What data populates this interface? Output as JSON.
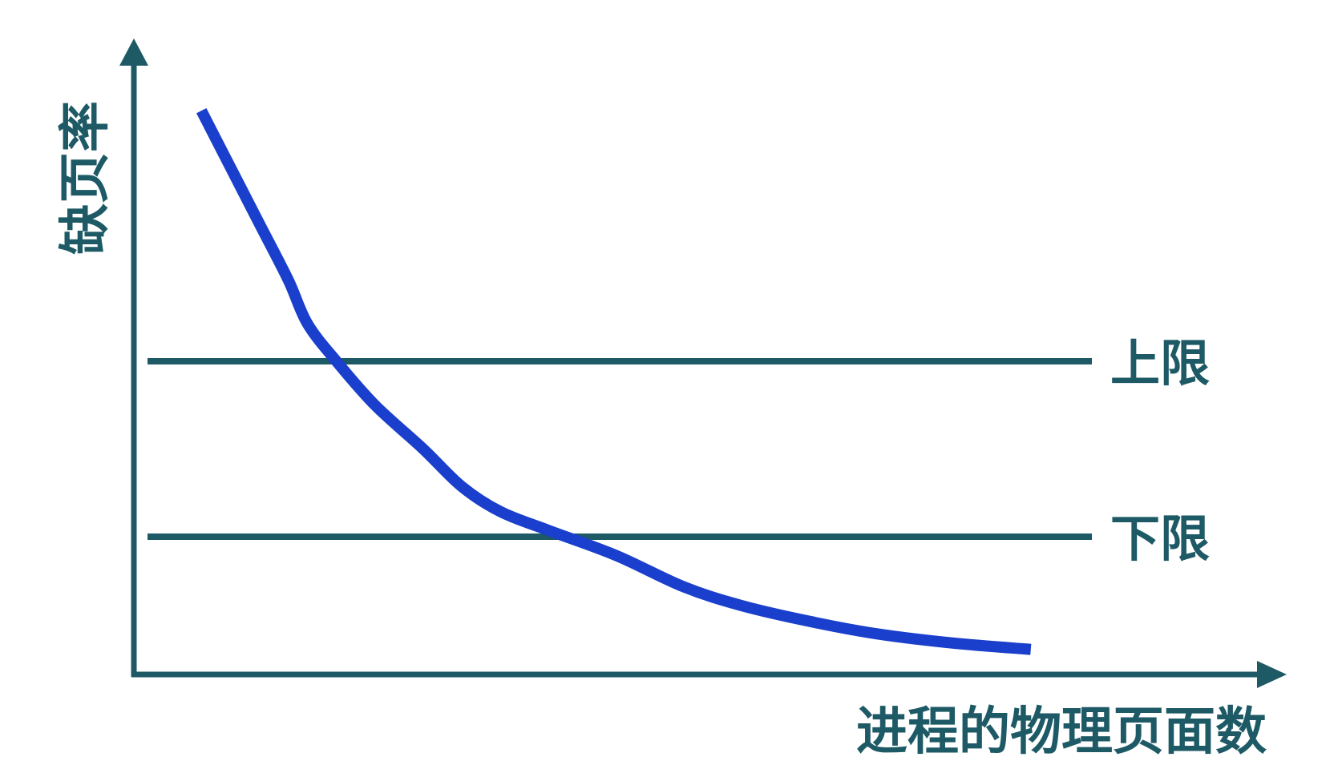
{
  "chart_data": {
    "type": "line",
    "title": "",
    "xlabel": "进程的物理页面数",
    "ylabel": "缺页率",
    "xlim": [
      0,
      100
    ],
    "ylim": [
      0,
      100
    ],
    "grid": false,
    "legend": "none",
    "x_ticks": [],
    "y_ticks": [],
    "series": [
      {
        "color": "#1a3fcc",
        "x": [
          7,
          10,
          13,
          16,
          18,
          21,
          25,
          30,
          34,
          38,
          43,
          50,
          57,
          63,
          70,
          77,
          85,
          93
        ],
        "y": [
          90,
          81,
          72,
          63,
          56,
          50,
          43,
          36,
          30,
          26,
          23,
          19,
          14,
          11,
          8.5,
          6.5,
          5,
          4
        ]
      }
    ],
    "reference_lines": [
      {
        "label": "上限",
        "y": 50,
        "color": "#1d5a66"
      },
      {
        "label": "下限",
        "y": 22,
        "color": "#1d5a66"
      }
    ],
    "axis_color": "#1d5a66",
    "label_color": "#1d5a66"
  }
}
